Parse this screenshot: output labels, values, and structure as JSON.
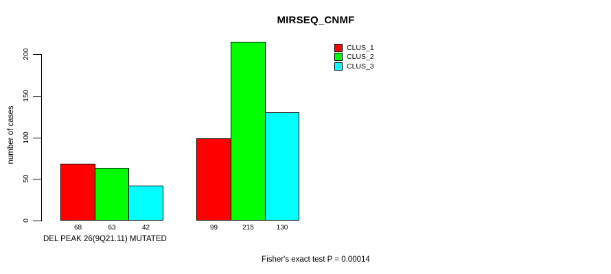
{
  "page": {
    "background_color": "#ffffff",
    "text_color": "#000000"
  },
  "chart_data": {
    "type": "bar",
    "title": "MIRSEQ_CNMF",
    "ylabel": "number of cases",
    "group_axis_label": "DEL PEAK 26(9Q21.11) MUTATED",
    "annotation": "Fisher's exact test P = 0.00014",
    "y_ticks": [
      0,
      50,
      100,
      150,
      200
    ],
    "ylim": [
      0,
      215
    ],
    "grid": false,
    "legend_position": "top-right",
    "bar_border_color": "#000000",
    "series": [
      {
        "name": "CLUS_1",
        "color": "#FF0000",
        "values": [
          68,
          99
        ]
      },
      {
        "name": "CLUS_2",
        "color": "#00FF00",
        "values": [
          63,
          215
        ]
      },
      {
        "name": "CLUS_3",
        "color": "#00FFFF",
        "values": [
          42,
          130
        ]
      }
    ],
    "bar_value_labels": [
      [
        "68",
        "63",
        "42"
      ],
      [
        "99",
        "215",
        "130"
      ]
    ]
  }
}
